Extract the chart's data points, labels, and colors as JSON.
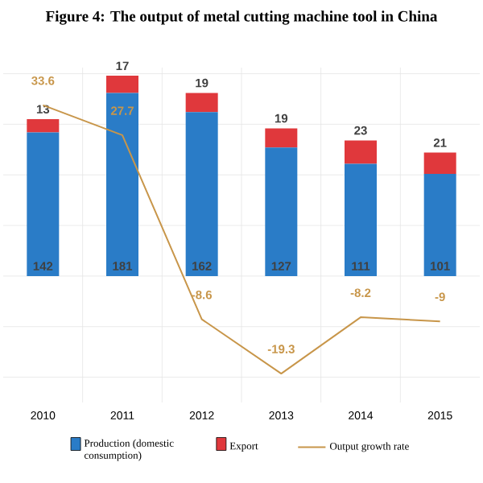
{
  "chart_data": {
    "type": "bar",
    "stacked": true,
    "title": "Figure 4: The output of metal cutting machine tool in China",
    "categories": [
      "2010",
      "2011",
      "2012",
      "2013",
      "2014",
      "2015"
    ],
    "series": [
      {
        "name": "Production (domestic consumption)",
        "color": "#2a7cc7",
        "values": [
          142,
          181,
          162,
          127,
          111,
          101
        ]
      },
      {
        "name": "Export",
        "color": "#e0383c",
        "values": [
          13,
          17,
          19,
          19,
          23,
          21
        ]
      },
      {
        "name": "Output growth rate",
        "type": "line",
        "axis": "y2",
        "color": "#c8964a",
        "values": [
          33.6,
          27.7,
          -8.6,
          -19.3,
          -8.2,
          -9
        ]
      }
    ],
    "ylim": [
      -125,
      206
    ],
    "yticks": [
      {
        "value": -100,
        "label": null
      },
      {
        "value": -50,
        "label": null
      },
      {
        "value": 0,
        "label": null
      },
      {
        "value": 50,
        "label": null
      },
      {
        "value": 100,
        "label": null
      },
      {
        "value": 150,
        "label": null
      },
      {
        "value": 200,
        "label": null
      }
    ],
    "y2lim": [
      -25,
      41
    ],
    "tick_labels": "x",
    "grid": true,
    "data_labels": true,
    "legend": "bottom"
  }
}
